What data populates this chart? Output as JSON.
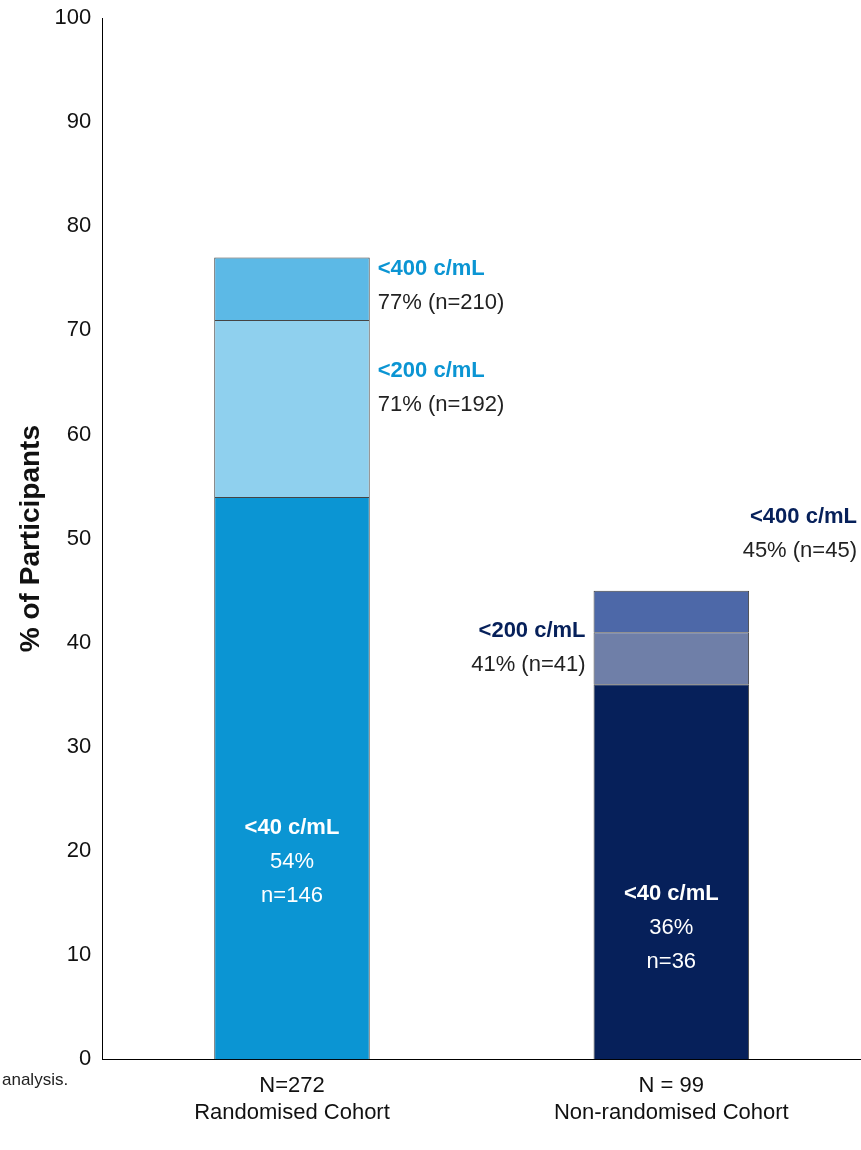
{
  "chart_data": {
    "type": "bar",
    "stacked": true,
    "ylabel": "% of Participants",
    "categories": [
      "N=272\nRandomised Cohort",
      "N = 99\nNon-randomised Cohort"
    ],
    "series": [
      {
        "colors": [
          "#0b95d3",
          "#06205a"
        ],
        "values": [
          54,
          36
        ],
        "value_labels": [
          "<40 c/mL\n54%\nn=146",
          "<40 c/mL\n36%\nn=36"
        ]
      },
      {
        "colors": [
          "#8fd0ee",
          "#6f7fa8"
        ],
        "values": [
          17,
          5
        ]
      },
      {
        "colors": [
          "#5cb9e6",
          "#4d68a8"
        ],
        "values": [
          6,
          4
        ]
      }
    ],
    "ylim": [
      0,
      100
    ],
    "yticks": [
      0,
      10,
      20,
      30,
      40,
      50,
      60,
      70,
      80,
      90,
      100
    ],
    "grid": false,
    "legend": false,
    "annotations": [
      "<400 c/mL\n77% (n=210)",
      "<200 c/mL\n71% (n=192)",
      "<200 c/mL\n41% (n=41)",
      "<400 c/mL\n45% (n=45)",
      "analysis."
    ]
  }
}
